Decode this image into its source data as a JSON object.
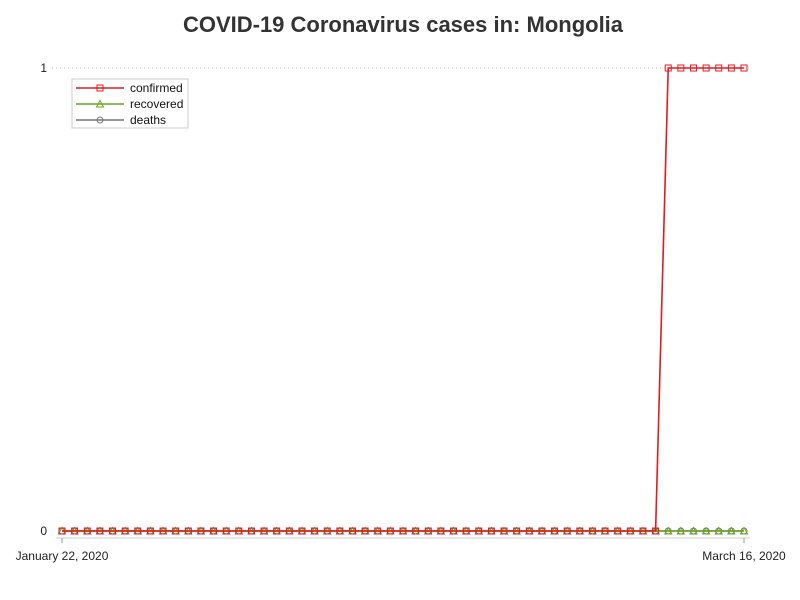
{
  "chart_data": {
    "type": "line",
    "title": "COVID-19 Coronavirus cases in: Mongolia",
    "xlabel": "",
    "ylabel": "",
    "x_start": "2020-01-22",
    "x_end": "2020-03-16",
    "x_tick_labels": [
      "January 22, 2020",
      "March 16, 2020"
    ],
    "y_ticks": [
      0,
      1
    ],
    "ylim": [
      0,
      1
    ],
    "grid": "dotted horizontal gridline at 1",
    "legend_position": "top-left",
    "series": [
      {
        "name": "confirmed",
        "color": "#e41a1c",
        "marker": "square",
        "values": [
          0,
          0,
          0,
          0,
          0,
          0,
          0,
          0,
          0,
          0,
          0,
          0,
          0,
          0,
          0,
          0,
          0,
          0,
          0,
          0,
          0,
          0,
          0,
          0,
          0,
          0,
          0,
          0,
          0,
          0,
          0,
          0,
          0,
          0,
          0,
          0,
          0,
          0,
          0,
          0,
          0,
          0,
          0,
          0,
          0,
          0,
          0,
          0,
          1,
          1,
          1,
          1,
          1,
          1,
          1
        ]
      },
      {
        "name": "recovered",
        "color": "#66a61e",
        "marker": "triangle",
        "values": [
          0,
          0,
          0,
          0,
          0,
          0,
          0,
          0,
          0,
          0,
          0,
          0,
          0,
          0,
          0,
          0,
          0,
          0,
          0,
          0,
          0,
          0,
          0,
          0,
          0,
          0,
          0,
          0,
          0,
          0,
          0,
          0,
          0,
          0,
          0,
          0,
          0,
          0,
          0,
          0,
          0,
          0,
          0,
          0,
          0,
          0,
          0,
          0,
          0,
          0,
          0,
          0,
          0,
          0,
          0
        ]
      },
      {
        "name": "deaths",
        "color": "#777777",
        "marker": "circle",
        "values": [
          0,
          0,
          0,
          0,
          0,
          0,
          0,
          0,
          0,
          0,
          0,
          0,
          0,
          0,
          0,
          0,
          0,
          0,
          0,
          0,
          0,
          0,
          0,
          0,
          0,
          0,
          0,
          0,
          0,
          0,
          0,
          0,
          0,
          0,
          0,
          0,
          0,
          0,
          0,
          0,
          0,
          0,
          0,
          0,
          0,
          0,
          0,
          0,
          0,
          0,
          0,
          0,
          0,
          0,
          0
        ]
      }
    ]
  }
}
